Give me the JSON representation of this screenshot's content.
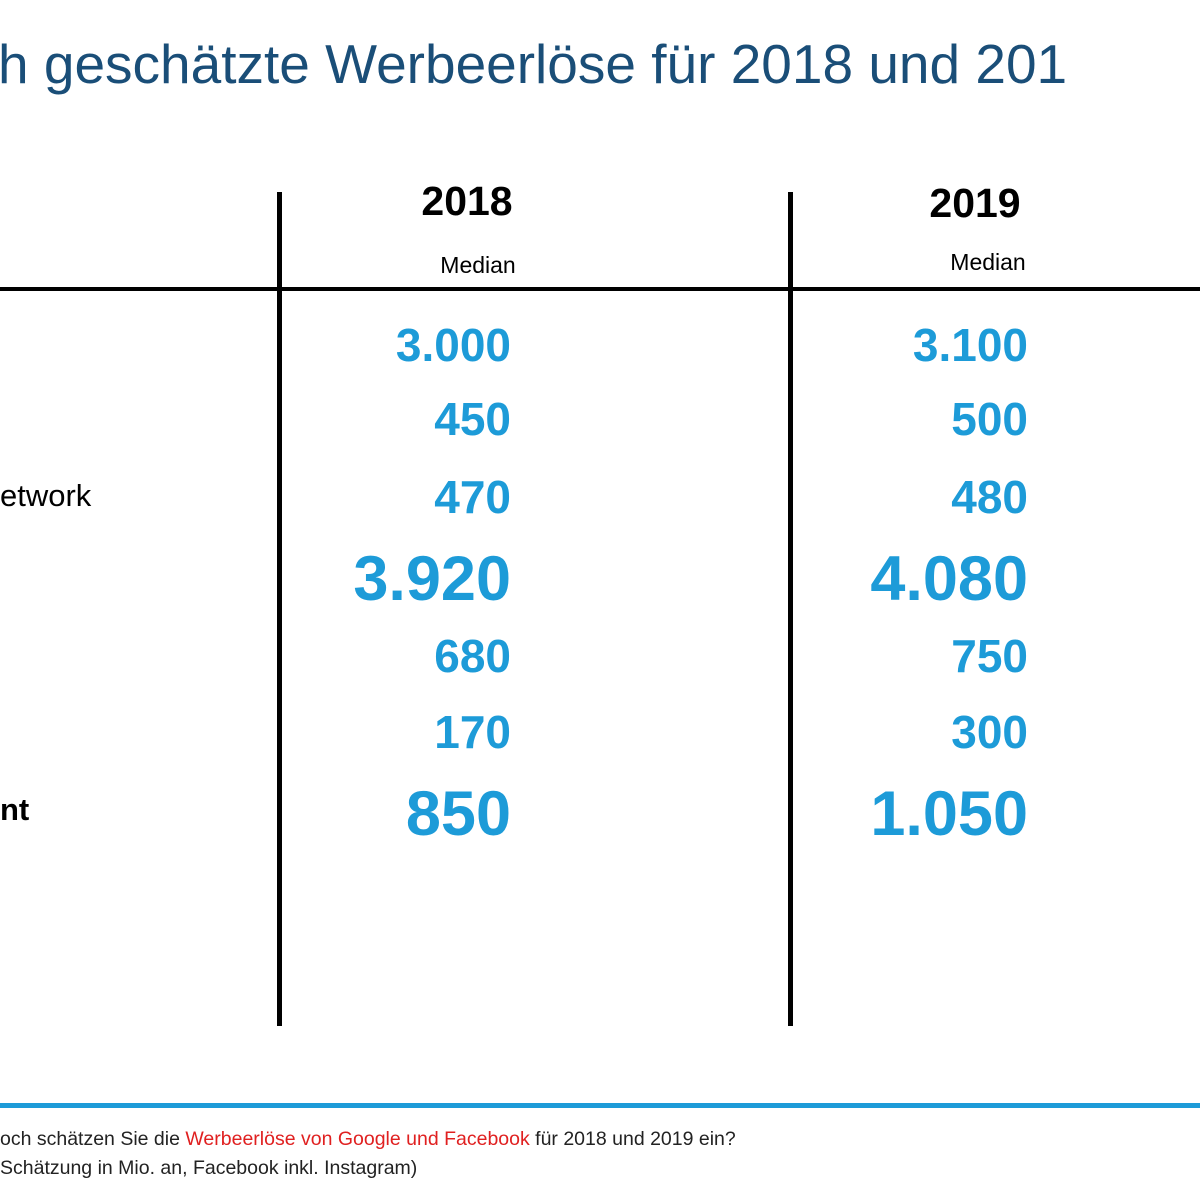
{
  "title": "h geschätzte Werbeerlöse für 2018 und 201",
  "columns": [
    {
      "year": "2018",
      "subheader": "Median"
    },
    {
      "year": "2019",
      "subheader": "Median"
    }
  ],
  "row_labels": [
    "",
    "",
    "etwork",
    "",
    "",
    "",
    "nt"
  ],
  "row_values_2018": [
    "3.000",
    "450",
    "470",
    "3.920",
    "680",
    "170",
    "850"
  ],
  "row_values_2019": [
    "3.100",
    "500",
    "480",
    "4.080",
    "750",
    "300",
    "1.050"
  ],
  "footnote": {
    "line1_pre": "och schätzen Sie die ",
    "line1_highlight": "Werbeerlöse von Google und Facebook",
    "line1_post": " für 2018 und 2019 ein?",
    "line2": " Schätzung in Mio. an, Facebook inkl. Instagram)"
  },
  "colors": {
    "title": "#1a4e78",
    "values": "#1d9bd8",
    "highlight": "#e02020",
    "rule": "#1d9bd8"
  },
  "chart_data": {
    "type": "table",
    "title": "h geschätzte Werbeerlöse für 2018 und 201",
    "columns": [
      "2018",
      "2019"
    ],
    "column_subheaders": [
      "Median",
      "Median"
    ],
    "rows": [
      {
        "label": "",
        "values": [
          3000,
          3100
        ]
      },
      {
        "label": "",
        "values": [
          450,
          500
        ]
      },
      {
        "label": "etwork",
        "values": [
          470,
          480
        ]
      },
      {
        "label": "",
        "values": [
          3920,
          4080
        ]
      },
      {
        "label": "",
        "values": [
          680,
          750
        ]
      },
      {
        "label": "",
        "values": [
          170,
          300
        ]
      },
      {
        "label": "nt",
        "values": [
          850,
          1050
        ]
      }
    ]
  }
}
